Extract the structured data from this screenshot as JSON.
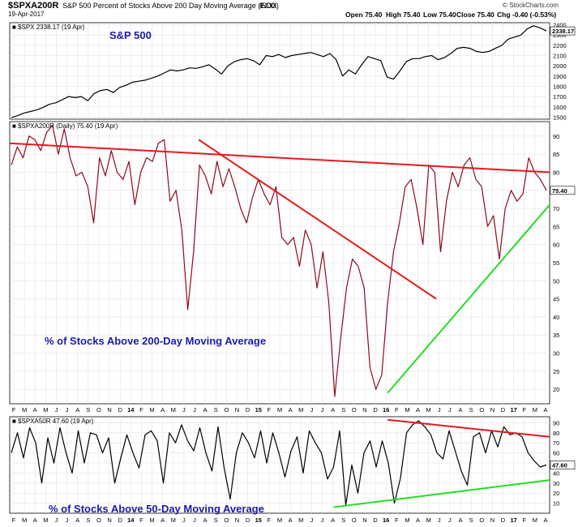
{
  "header": {
    "symbol": "$SPXA200R",
    "description": "S&P 500 Percent of Stocks Above 200 Day Moving Average (EOD)",
    "exchange": "INDX",
    "date": "19-Apr-2017",
    "open": "Open 75.40",
    "high": "High 75.40",
    "low": "Low 75.40",
    "close": "Close 75.40",
    "change": "Chg -0.40 (-0.53%)",
    "change_color": "#cc0000",
    "brand": "© StockCharts.com"
  },
  "colors": {
    "price_line": "#000000",
    "breadth_line": "#8b0a1e",
    "resistance": "#e31a1c",
    "support": "#22dd22",
    "annotation": "#1a1aaa",
    "grid": "#dddddd"
  },
  "x_axis_labels": [
    "F",
    "M",
    "A",
    "M",
    "J",
    "J",
    "A",
    "S",
    "O",
    "N",
    "D",
    "14",
    "F",
    "M",
    "A",
    "M",
    "J",
    "J",
    "A",
    "S",
    "O",
    "N",
    "D",
    "15",
    "F",
    "M",
    "A",
    "M",
    "J",
    "J",
    "A",
    "S",
    "O",
    "N",
    "D",
    "16",
    "F",
    "M",
    "A",
    "M",
    "J",
    "J",
    "A",
    "S",
    "O",
    "N",
    "D",
    "17",
    "F",
    "M",
    "A"
  ],
  "chart_data": [
    {
      "type": "line",
      "legend": "$SPX 2338.17 (19 Apr)",
      "annotation": "S&P 500",
      "last_value_label": "2338.17",
      "y_ticks": [
        1500,
        1600,
        1700,
        1800,
        1900,
        2000,
        2100,
        2200,
        2300,
        2400
      ],
      "ylim": [
        1480,
        2420
      ],
      "series": [
        {
          "name": "$SPX",
          "values": [
            1495,
            1515,
            1540,
            1555,
            1570,
            1595,
            1625,
            1640,
            1670,
            1700,
            1690,
            1700,
            1660,
            1730,
            1760,
            1770,
            1740,
            1790,
            1810,
            1840,
            1850,
            1860,
            1880,
            1900,
            1930,
            1960,
            1950,
            1960,
            1980,
            1975,
            1990,
            2010,
            1970,
            1920,
            2000,
            2040,
            2060,
            2070,
            2050,
            2010,
            2100,
            2090,
            2110,
            2080,
            2100,
            2110,
            2120,
            2130,
            2110,
            2090,
            2120,
            2060,
            1900,
            1960,
            1920,
            2010,
            2090,
            2070,
            2050,
            1890,
            1870,
            1950,
            2040,
            2070,
            2070,
            2090,
            2100,
            2060,
            2080,
            2120,
            2170,
            2180,
            2170,
            2140,
            2130,
            2140,
            2170,
            2200,
            2260,
            2280,
            2300,
            2360,
            2390,
            2370,
            2340
          ]
        }
      ]
    },
    {
      "type": "line",
      "legend": "$SPXA200R (Daily) 75.40 (19 Apr)",
      "annotation": "% of Stocks Above 200-Day Moving Average",
      "last_value_label": "75.40",
      "y_ticks": [
        20,
        25,
        30,
        35,
        40,
        45,
        50,
        55,
        60,
        65,
        70,
        75,
        80,
        85,
        90
      ],
      "ylim": [
        16,
        94
      ],
      "series": [
        {
          "name": "$SPXA200R",
          "values": [
            82,
            87,
            84,
            90,
            89,
            86,
            91,
            93,
            85,
            92,
            84,
            79,
            80,
            76,
            66,
            84,
            79,
            86,
            80,
            78,
            83,
            71,
            80,
            84,
            83,
            88,
            89,
            72,
            75,
            64,
            42,
            58,
            82,
            79,
            74,
            83,
            76,
            81,
            76,
            70,
            66,
            73,
            78,
            74,
            71,
            76,
            62,
            60,
            62,
            54,
            64,
            60,
            48,
            58,
            44,
            18,
            34,
            48,
            56,
            54,
            48,
            26,
            20,
            24,
            44,
            58,
            66,
            76,
            78,
            70,
            60,
            82,
            80,
            58,
            72,
            80,
            76,
            82,
            84,
            78,
            76,
            65,
            68,
            56,
            70,
            75,
            72,
            74,
            84,
            80,
            78,
            75
          ]
        }
      ],
      "trendlines": [
        {
          "name": "resistance-long",
          "x": [
            0,
            1
          ],
          "y": [
            88,
            80
          ]
        },
        {
          "name": "resistance-steep",
          "x": [
            0.35,
            0.79
          ],
          "y": [
            89,
            45
          ]
        },
        {
          "name": "support",
          "x": [
            0.7,
            1
          ],
          "y": [
            19,
            71
          ]
        }
      ]
    },
    {
      "type": "line",
      "legend": "$SPXA50R 47.60 (19 Apr)",
      "annotation": "% of Stocks Above 50-Day Moving Average",
      "last_value_label": "47.60",
      "y_ticks": [
        10,
        20,
        30,
        40,
        50,
        60,
        70,
        80,
        90
      ],
      "ylim": [
        0,
        96
      ],
      "series": [
        {
          "name": "$SPXA50R",
          "values": [
            60,
            80,
            55,
            85,
            70,
            30,
            75,
            50,
            85,
            60,
            40,
            82,
            50,
            80,
            78,
            60,
            75,
            30,
            55,
            78,
            60,
            45,
            78,
            82,
            72,
            30,
            80,
            70,
            88,
            72,
            62,
            85,
            60,
            42,
            86,
            45,
            14,
            60,
            80,
            70,
            55,
            82,
            50,
            80,
            60,
            36,
            62,
            76,
            40,
            82,
            70,
            60,
            34,
            46,
            82,
            8,
            48,
            20,
            60,
            72,
            46,
            72,
            50,
            10,
            35,
            80,
            88,
            92,
            86,
            78,
            60,
            54,
            82,
            62,
            42,
            28,
            76,
            80,
            60,
            82,
            66,
            86,
            78,
            80,
            76,
            60,
            52,
            46,
            48
          ]
        }
      ],
      "trendlines": [
        {
          "name": "resistance",
          "x": [
            0.7,
            1
          ],
          "y": [
            93,
            76
          ]
        },
        {
          "name": "support",
          "x": [
            0.6,
            1
          ],
          "y": [
            6,
            33
          ]
        }
      ]
    }
  ]
}
